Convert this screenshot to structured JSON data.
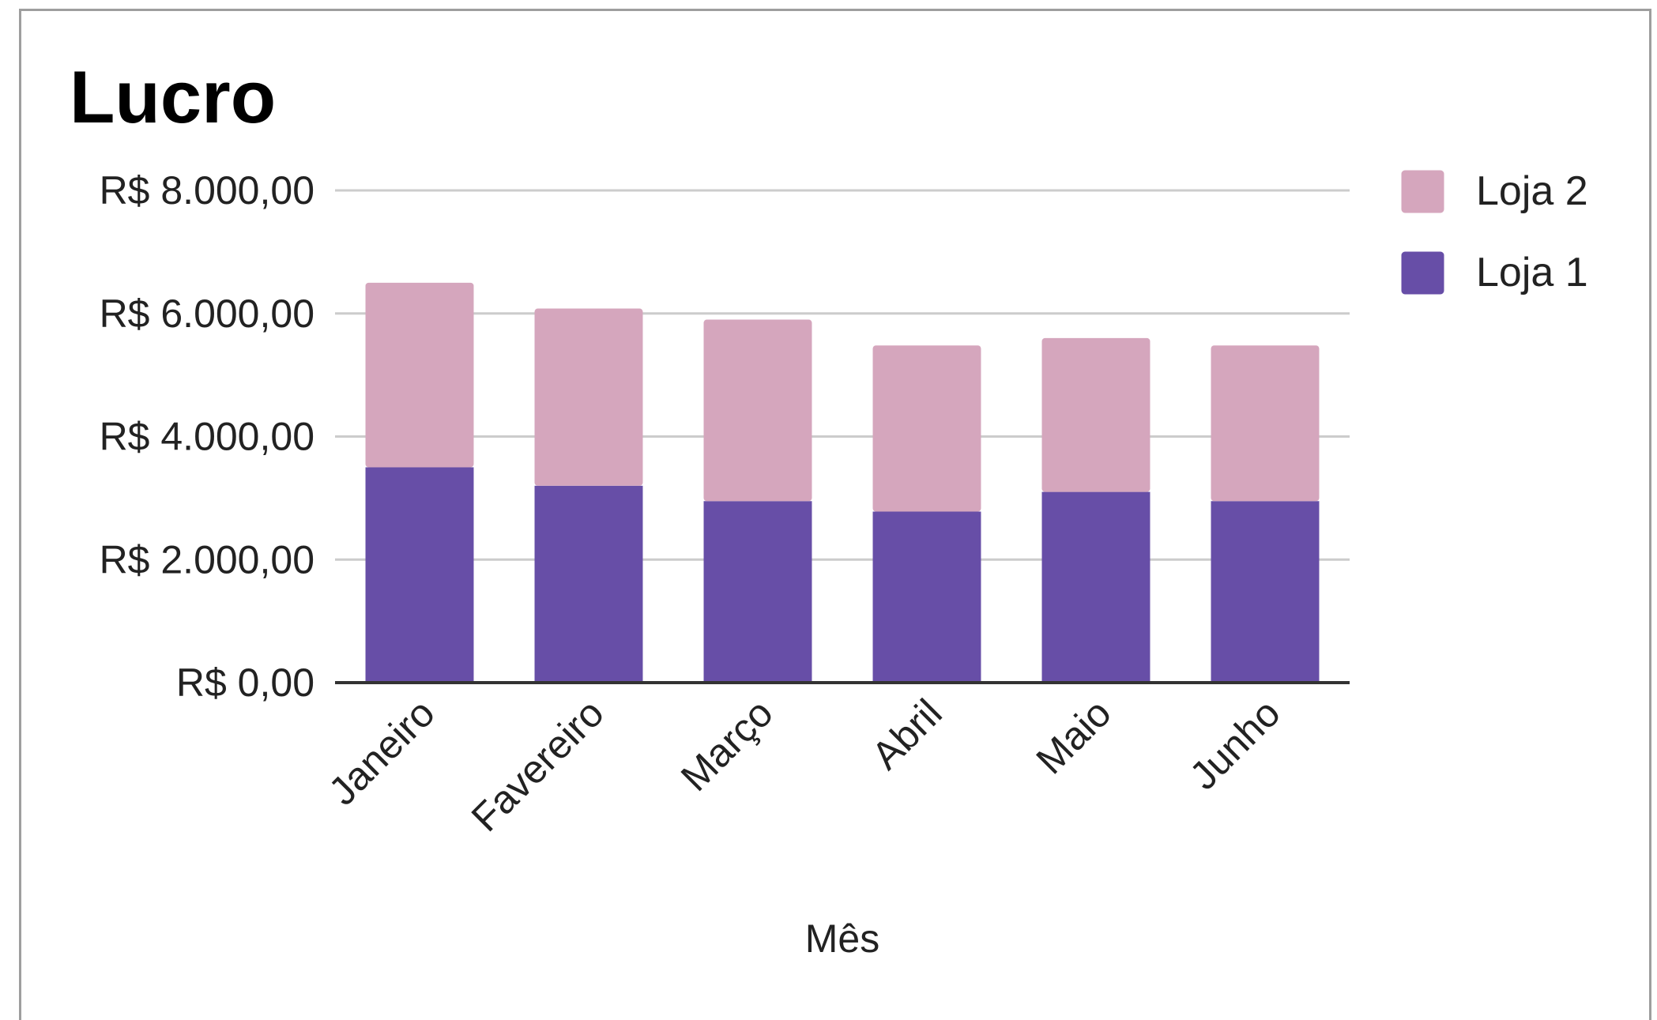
{
  "chart_data": {
    "type": "bar",
    "stacked": true,
    "title": "Lucro",
    "xlabel": "Mês",
    "ylabel": "",
    "categories": [
      "Janeiro",
      "Favereiro",
      "Março",
      "Abril",
      "Maio",
      "Junho"
    ],
    "series": [
      {
        "name": "Loja 1",
        "color": "#674ea7",
        "values": [
          3500,
          3200,
          2950,
          2780,
          3100,
          2950
        ]
      },
      {
        "name": "Loja 2",
        "color": "#d5a6bd",
        "values": [
          3000,
          2880,
          2950,
          2700,
          2500,
          2530
        ]
      }
    ],
    "ylim": [
      0,
      8000
    ],
    "yticks": [
      0,
      2000,
      4000,
      6000,
      8000
    ],
    "ytick_labels": [
      "R$ 0,00",
      "R$ 2.000,00",
      "R$ 4.000,00",
      "R$ 6.000,00",
      "R$ 8.000,00"
    ],
    "grid": true,
    "legend_position": "right",
    "legend_order": [
      "Loja 2",
      "Loja 1"
    ],
    "colors": {
      "gridline": "#cccccc",
      "baseline": "#333333",
      "frame": "#9e9e9e"
    }
  }
}
